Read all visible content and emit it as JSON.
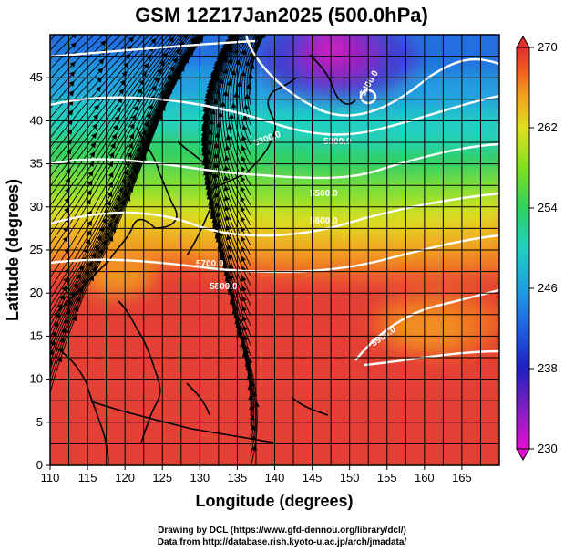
{
  "title": "GSM 12Z17Jan2025 (500.0hPa)",
  "xlabel": "Longitude (degrees)",
  "ylabel": "Latitude  (degrees)",
  "x_ticks": [
    "110",
    "115",
    "120",
    "125",
    "130",
    "135",
    "140",
    "145",
    "150",
    "155",
    "160",
    "165"
  ],
  "y_ticks": [
    "0",
    "5",
    "10",
    "15",
    "20",
    "25",
    "30",
    "35",
    "40",
    "45"
  ],
  "colorbar": {
    "ticks": [
      "230",
      "238",
      "246",
      "254",
      "262",
      "270"
    ],
    "min": 230,
    "max": 270,
    "colors": [
      "#e010d0",
      "#8020c0",
      "#2020c0",
      "#2060e0",
      "#20a0e0",
      "#20d0c0",
      "#30d060",
      "#80e020",
      "#e0e020",
      "#f0a020",
      "#f06020",
      "#e03030"
    ]
  },
  "chart_data": {
    "type": "heatmap",
    "title": "GSM 12Z17Jan2025 (500.0hPa)",
    "xlabel": "Longitude (degrees)",
    "ylabel": "Latitude  (degrees)",
    "xlim": [
      110,
      170
    ],
    "ylim": [
      0,
      50
    ],
    "color_range": [
      230,
      270
    ],
    "contour_labels": [
      "5400.0",
      "5300.0",
      "5500.0",
      "5600.0",
      "5700.0",
      "5800.0",
      "5900.0"
    ],
    "wind_vectors": true,
    "grid": true
  },
  "credits": {
    "line1": "Drawing by DCL (https://www.gfd-dennou.org/library/dcl/)",
    "line2": "Data from http://database.rish.kyoto-u.ac.jp/arch/jmadata/"
  }
}
